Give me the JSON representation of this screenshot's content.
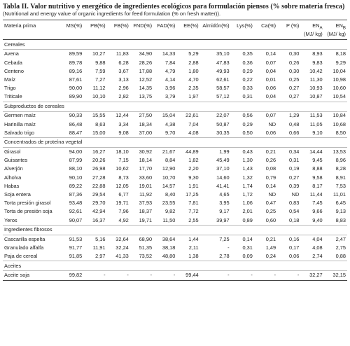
{
  "title": "Tabla II. Valor nutritivo y energético de ingredientes ecológicos para formulación piensos (% sobre materia fresca)",
  "subtitle": "(Nutritional and energy value of organic ingredients for feed formulation (% on fresh matter)).",
  "table": {
    "header": [
      "Materia prima",
      "MS(%)",
      "PB(%)",
      "FB(%)",
      "FND(%)",
      "FAD(%)",
      "EE(%)",
      "Almidón(%)",
      "Lys(%)",
      "Ca(%)",
      "P (%)",
      {
        "main": "EN",
        "sub": "A",
        "unit": "(MJ/ kg)"
      },
      {
        "main": "EN",
        "sub": "B",
        "unit": "(MJ/ kg)"
      }
    ],
    "sections": [
      {
        "title": "Cereales",
        "rows": [
          [
            "Avena",
            "89,59",
            "10,27",
            "11,83",
            "34,90",
            "14,33",
            "5,29",
            "35,10",
            "0,35",
            "0,14",
            "0,30",
            "8,93",
            "8,18"
          ],
          [
            "Cebada",
            "89,78",
            "9,88",
            "6,28",
            "28,26",
            "7,84",
            "2,88",
            "47,83",
            "0,36",
            "0,07",
            "0,26",
            "9,83",
            "9,29"
          ],
          [
            "Centeno",
            "89,16",
            "7,59",
            "3,67",
            "17,88",
            "4,79",
            "1,80",
            "49,93",
            "0,29",
            "0,04",
            "0,30",
            "10,42",
            "10,04"
          ],
          [
            "Maíz",
            "87,61",
            "7,27",
            "3,13",
            "12,52",
            "4,14",
            "4,70",
            "62,61",
            "0,22",
            "0,01",
            "0,25",
            "11,30",
            "10,98"
          ],
          [
            "Trigo",
            "90,00",
            "11,12",
            "2,96",
            "14,35",
            "3,96",
            "2,35",
            "58,57",
            "0,33",
            "0,06",
            "0,27",
            "10,93",
            "10,60"
          ],
          [
            "Triticale",
            "89,90",
            "10,10",
            "2,82",
            "13,75",
            "3,79",
            "1,97",
            "57,12",
            "0,31",
            "0,04",
            "0,27",
            "10,87",
            "10,54"
          ]
        ]
      },
      {
        "title": "Subproductos de cereales",
        "rows": [
          [
            "Germen maíz",
            "90,33",
            "15,55",
            "12,44",
            "27,50",
            "15,04",
            "22,61",
            "22,07",
            "0,56",
            "0,07",
            "1,29",
            "11,53",
            "10,84"
          ],
          [
            "Harinilla maíz",
            "86,48",
            "8,63",
            "3,34",
            "18,34",
            "4,38",
            "7,04",
            "50,87",
            "0,29",
            "ND",
            "0,48",
            "11,05",
            "10,68"
          ],
          [
            "Salvado trigo",
            "88,47",
            "15,00",
            "9,08",
            "37,00",
            "9,70",
            "4,08",
            "30,35",
            "0,50",
            "0,06",
            "0,66",
            "9,10",
            "8,50"
          ]
        ]
      },
      {
        "title": "Concentrados de proteína vegetal",
        "rows": [
          [
            "Girasol",
            "94,00",
            "16,27",
            "18,10",
            "30,92",
            "21,67",
            "44,89",
            "1,99",
            "0,43",
            "0,21",
            "0,34",
            "14,44",
            "13,53"
          ],
          [
            "Guisantes",
            "87,99",
            "20,26",
            "7,15",
            "18,14",
            "8,84",
            "1,82",
            "45,49",
            "1,30",
            "0,26",
            "0,31",
            "9,45",
            "8,96"
          ],
          [
            "Alverjón",
            "88,10",
            "26,98",
            "10,62",
            "17,70",
            "12,90",
            "2,20",
            "37,10",
            "1,43",
            "0,08",
            "0,19",
            "8,88",
            "8,28"
          ],
          [
            "Alholva",
            "90,10",
            "27,28",
            "8,73",
            "33,60",
            "10,70",
            "9,30",
            "14,60",
            "1,32",
            "0,79",
            "0,27",
            "9,58",
            "8,91"
          ],
          [
            "Habas",
            "89,22",
            "22,88",
            "12,05",
            "19,01",
            "14,57",
            "1,91",
            "41,41",
            "1,74",
            "0,14",
            "0,39",
            "8,17",
            "7,53"
          ],
          [
            "Soja entera",
            "87,36",
            "29,54",
            "6,77",
            "11,92",
            "8,40",
            "17,25",
            "4,65",
            "1,72",
            "ND",
            "ND",
            "11,44",
            "11,01"
          ],
          [
            "Torta presión girasol",
            "93,48",
            "29,70",
            "19,71",
            "37,93",
            "23,55",
            "7,81",
            "3,95",
            "1,06",
            "0,47",
            "0,83",
            "7,45",
            "6,45"
          ],
          [
            "Torta de presión soja",
            "92,61",
            "42,94",
            "7,96",
            "18,37",
            "9,82",
            "7,72",
            "9,17",
            "2,01",
            "0,25",
            "0,54",
            "9,66",
            "9,13"
          ],
          [
            "Yeros",
            "90,07",
            "16,37",
            "4,92",
            "19,71",
            "11,50",
            "2,55",
            "39,97",
            "0,89",
            "0,60",
            "0,18",
            "9,40",
            "8,83"
          ]
        ]
      },
      {
        "title": "Ingredientes fibrosos",
        "rows": [
          [
            "Cascarilla espelta",
            "91,53",
            "5,16",
            "32,64",
            "68,90",
            "38,64",
            "1,44",
            "7,25",
            "0,14",
            "0,21",
            "0,16",
            "4,04",
            "2,47"
          ],
          [
            "Granulado alfalfa",
            "91,77",
            "11,91",
            "32,24",
            "51,35",
            "38,18",
            "2,11",
            "-",
            "0,31",
            "1,49",
            "0,17",
            "4,08",
            "2,75"
          ],
          [
            "Paja de cereal",
            "91,85",
            "2,97",
            "41,33",
            "73,52",
            "48,80",
            "1,38",
            "2,78",
            "0,09",
            "0,24",
            "0,06",
            "2,74",
            "0,88"
          ]
        ]
      },
      {
        "title": "Aceites",
        "rows": [
          [
            "Aceite soja",
            "99,82",
            "-",
            "-",
            "-",
            "-",
            "99,44",
            "-",
            "-",
            "-",
            "-",
            "32,27",
            "32,15"
          ]
        ]
      }
    ]
  }
}
